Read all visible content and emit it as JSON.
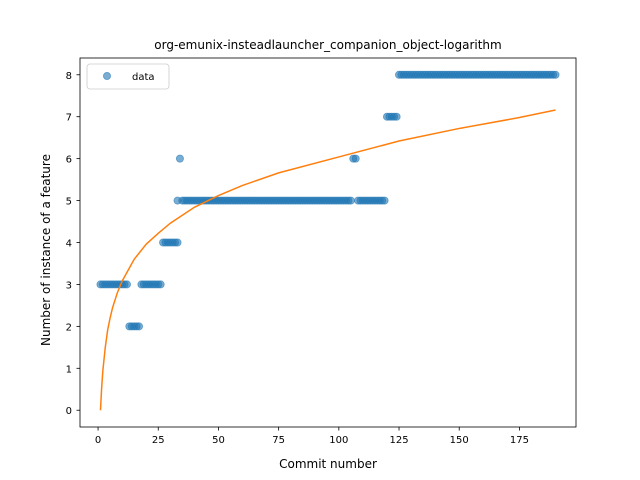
{
  "chart_data": {
    "type": "scatter",
    "title": "org-emunix-insteadlauncher_companion_object-logarithm",
    "xlabel": "Commit number",
    "ylabel": "Number of instance of a feature",
    "xlim": [
      -7.5,
      198.5
    ],
    "ylim": [
      -0.4,
      8.4
    ],
    "xticks": [
      0,
      25,
      50,
      75,
      100,
      125,
      150,
      175
    ],
    "yticks": [
      0,
      1,
      2,
      3,
      4,
      5,
      6,
      7,
      8
    ],
    "grid": false,
    "legend": {
      "placement": "top-left",
      "entries": [
        "data"
      ]
    },
    "series": [
      {
        "name": "data",
        "kind": "scatter",
        "color": "#1f77b4",
        "segments": [
          {
            "x_start": 1,
            "x_end": 9,
            "y": 3
          },
          {
            "x_start": 10,
            "x_end": 12,
            "y": 3
          },
          {
            "x_start": 13,
            "x_end": 17,
            "y": 2
          },
          {
            "x_start": 18,
            "x_end": 26,
            "y": 3
          },
          {
            "x_start": 27,
            "x_end": 33,
            "y": 4
          },
          {
            "x_start": 34,
            "x_end": 34,
            "y": 6
          },
          {
            "x_start": 33,
            "x_end": 33,
            "y": 5
          },
          {
            "x_start": 35,
            "x_end": 105,
            "y": 5
          },
          {
            "x_start": 106,
            "x_end": 107,
            "y": 6
          },
          {
            "x_start": 108,
            "x_end": 119,
            "y": 5
          },
          {
            "x_start": 120,
            "x_end": 124,
            "y": 7
          },
          {
            "x_start": 125,
            "x_end": 190,
            "y": 8
          }
        ]
      },
      {
        "name": "",
        "kind": "line",
        "color": "#ff7f0e",
        "points": [
          [
            1,
            0
          ],
          [
            1.5,
            0.54
          ],
          [
            2,
            0.95
          ],
          [
            3,
            1.5
          ],
          [
            4,
            1.92
          ],
          [
            5,
            2.2
          ],
          [
            6,
            2.44
          ],
          [
            8,
            2.8
          ],
          [
            10,
            3.08
          ],
          [
            15,
            3.6
          ],
          [
            20,
            3.96
          ],
          [
            25,
            4.22
          ],
          [
            30,
            4.46
          ],
          [
            40,
            4.84
          ],
          [
            50,
            5.12
          ],
          [
            60,
            5.36
          ],
          [
            75,
            5.66
          ],
          [
            100,
            6.04
          ],
          [
            125,
            6.42
          ],
          [
            150,
            6.72
          ],
          [
            175,
            6.98
          ],
          [
            190,
            7.16
          ]
        ]
      }
    ]
  }
}
